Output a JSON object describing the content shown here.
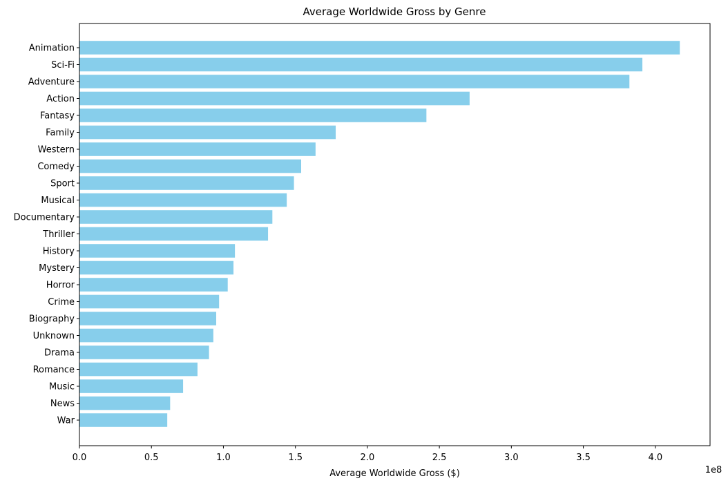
{
  "chart_data": {
    "type": "bar",
    "orientation": "horizontal",
    "title": "Average Worldwide Gross by Genre",
    "xlabel": "Average Worldwide Gross ($)",
    "ylabel": "",
    "x_offset_label": "1e8",
    "xlim": [
      0,
      4.38
    ],
    "x_ticks": [
      0.0,
      0.5,
      1.0,
      1.5,
      2.0,
      2.5,
      3.0,
      3.5,
      4.0
    ],
    "x_tick_labels": [
      "0.0",
      "0.5",
      "1.0",
      "1.5",
      "2.0",
      "2.5",
      "3.0",
      "3.5",
      "4.0"
    ],
    "grid": false,
    "color": "#87ceeb",
    "categories": [
      "Animation",
      "Sci-Fi",
      "Adventure",
      "Action",
      "Fantasy",
      "Family",
      "Western",
      "Comedy",
      "Sport",
      "Musical",
      "Documentary",
      "Thriller",
      "History",
      "Mystery",
      "Horror",
      "Crime",
      "Biography",
      "Unknown",
      "Drama",
      "Romance",
      "Music",
      "News",
      "War"
    ],
    "values": [
      4.17,
      3.91,
      3.82,
      2.71,
      2.41,
      1.78,
      1.64,
      1.54,
      1.49,
      1.44,
      1.34,
      1.31,
      1.08,
      1.07,
      1.03,
      0.97,
      0.95,
      0.93,
      0.9,
      0.82,
      0.72,
      0.63,
      0.61
    ]
  }
}
